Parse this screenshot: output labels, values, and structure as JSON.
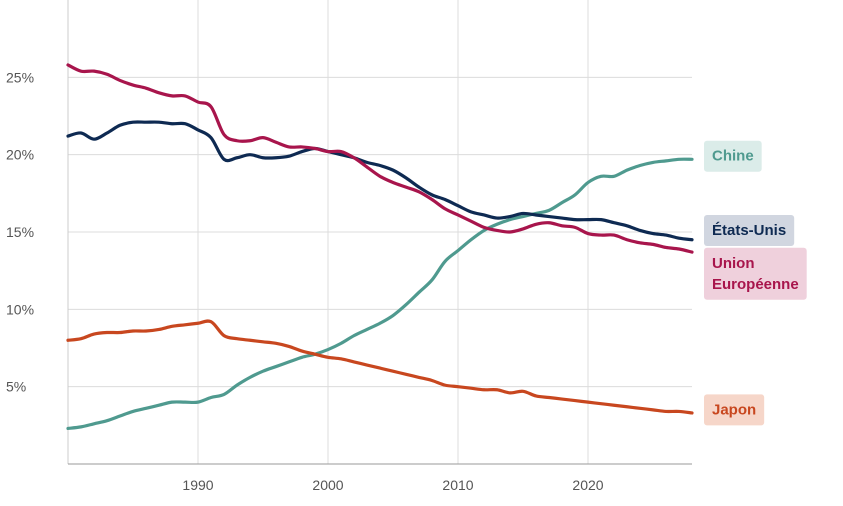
{
  "chart_data": {
    "type": "line",
    "title": "",
    "xlabel": "",
    "ylabel": "",
    "xlim": [
      1980,
      2028
    ],
    "ylim": [
      0,
      30
    ],
    "grid": true,
    "legend_placement": "right, labels at line ends",
    "x_ticks": [
      {
        "value": 1990,
        "label": "1990"
      },
      {
        "value": 2000,
        "label": "2000"
      },
      {
        "value": 2010,
        "label": "2010"
      },
      {
        "value": 2020,
        "label": "2020"
      }
    ],
    "y_ticks": [
      {
        "value": 5,
        "label": "5%"
      },
      {
        "value": 10,
        "label": "10%"
      },
      {
        "value": 15,
        "label": "15%"
      },
      {
        "value": 20,
        "label": "20%"
      },
      {
        "value": 25,
        "label": "25%"
      }
    ],
    "series": [
      {
        "name": "Chine",
        "label_lines": [
          "Chine"
        ],
        "color": "#4f9a8f",
        "label_bg": "#dbece9",
        "label_y": 19.9,
        "points": [
          [
            1980,
            2.3
          ],
          [
            1981,
            2.4
          ],
          [
            1982,
            2.6
          ],
          [
            1983,
            2.8
          ],
          [
            1984,
            3.1
          ],
          [
            1985,
            3.4
          ],
          [
            1986,
            3.6
          ],
          [
            1987,
            3.8
          ],
          [
            1988,
            4.0
          ],
          [
            1989,
            4.0
          ],
          [
            1990,
            4.0
          ],
          [
            1991,
            4.3
          ],
          [
            1992,
            4.5
          ],
          [
            1993,
            5.1
          ],
          [
            1994,
            5.6
          ],
          [
            1995,
            6.0
          ],
          [
            1996,
            6.3
          ],
          [
            1997,
            6.6
          ],
          [
            1998,
            6.9
          ],
          [
            1999,
            7.1
          ],
          [
            2000,
            7.4
          ],
          [
            2001,
            7.8
          ],
          [
            2002,
            8.3
          ],
          [
            2003,
            8.7
          ],
          [
            2004,
            9.1
          ],
          [
            2005,
            9.6
          ],
          [
            2006,
            10.3
          ],
          [
            2007,
            11.1
          ],
          [
            2008,
            11.9
          ],
          [
            2009,
            13.1
          ],
          [
            2010,
            13.8
          ],
          [
            2011,
            14.5
          ],
          [
            2012,
            15.1
          ],
          [
            2013,
            15.5
          ],
          [
            2014,
            15.8
          ],
          [
            2015,
            16.0
          ],
          [
            2016,
            16.2
          ],
          [
            2017,
            16.4
          ],
          [
            2018,
            16.9
          ],
          [
            2019,
            17.4
          ],
          [
            2020,
            18.2
          ],
          [
            2021,
            18.6
          ],
          [
            2022,
            18.6
          ],
          [
            2023,
            19.0
          ],
          [
            2024,
            19.3
          ],
          [
            2025,
            19.5
          ],
          [
            2026,
            19.6
          ],
          [
            2027,
            19.7
          ],
          [
            2028,
            19.7
          ]
        ]
      },
      {
        "name": "États-Unis",
        "label_lines": [
          "États-Unis"
        ],
        "color": "#0e2a52",
        "label_bg": "#d1d6e0",
        "label_y": 15.1,
        "points": [
          [
            1980,
            21.2
          ],
          [
            1981,
            21.4
          ],
          [
            1982,
            21.0
          ],
          [
            1983,
            21.4
          ],
          [
            1984,
            21.9
          ],
          [
            1985,
            22.1
          ],
          [
            1986,
            22.1
          ],
          [
            1987,
            22.1
          ],
          [
            1988,
            22.0
          ],
          [
            1989,
            22.0
          ],
          [
            1990,
            21.6
          ],
          [
            1991,
            21.1
          ],
          [
            1992,
            19.7
          ],
          [
            1993,
            19.8
          ],
          [
            1994,
            20.0
          ],
          [
            1995,
            19.8
          ],
          [
            1996,
            19.8
          ],
          [
            1997,
            19.9
          ],
          [
            1998,
            20.2
          ],
          [
            1999,
            20.4
          ],
          [
            2000,
            20.2
          ],
          [
            2001,
            20.0
          ],
          [
            2002,
            19.8
          ],
          [
            2003,
            19.5
          ],
          [
            2004,
            19.3
          ],
          [
            2005,
            19.0
          ],
          [
            2006,
            18.5
          ],
          [
            2007,
            17.9
          ],
          [
            2008,
            17.4
          ],
          [
            2009,
            17.1
          ],
          [
            2010,
            16.7
          ],
          [
            2011,
            16.3
          ],
          [
            2012,
            16.1
          ],
          [
            2013,
            15.9
          ],
          [
            2014,
            16.0
          ],
          [
            2015,
            16.2
          ],
          [
            2016,
            16.1
          ],
          [
            2017,
            16.0
          ],
          [
            2018,
            15.9
          ],
          [
            2019,
            15.8
          ],
          [
            2020,
            15.8
          ],
          [
            2021,
            15.8
          ],
          [
            2022,
            15.6
          ],
          [
            2023,
            15.4
          ],
          [
            2024,
            15.1
          ],
          [
            2025,
            14.9
          ],
          [
            2026,
            14.8
          ],
          [
            2027,
            14.6
          ],
          [
            2028,
            14.5
          ]
        ]
      },
      {
        "name": "Union Européenne",
        "label_lines": [
          "Union",
          "Européenne"
        ],
        "color": "#a8154c",
        "label_bg": "#efd0dc",
        "label_y": 12.3,
        "points": [
          [
            1980,
            25.8
          ],
          [
            1981,
            25.4
          ],
          [
            1982,
            25.4
          ],
          [
            1983,
            25.2
          ],
          [
            1984,
            24.8
          ],
          [
            1985,
            24.5
          ],
          [
            1986,
            24.3
          ],
          [
            1987,
            24.0
          ],
          [
            1988,
            23.8
          ],
          [
            1989,
            23.8
          ],
          [
            1990,
            23.4
          ],
          [
            1991,
            23.1
          ],
          [
            1992,
            21.3
          ],
          [
            1993,
            20.9
          ],
          [
            1994,
            20.9
          ],
          [
            1995,
            21.1
          ],
          [
            1996,
            20.8
          ],
          [
            1997,
            20.5
          ],
          [
            1998,
            20.5
          ],
          [
            1999,
            20.4
          ],
          [
            2000,
            20.2
          ],
          [
            2001,
            20.2
          ],
          [
            2002,
            19.8
          ],
          [
            2003,
            19.2
          ],
          [
            2004,
            18.6
          ],
          [
            2005,
            18.2
          ],
          [
            2006,
            17.9
          ],
          [
            2007,
            17.6
          ],
          [
            2008,
            17.1
          ],
          [
            2009,
            16.5
          ],
          [
            2010,
            16.1
          ],
          [
            2011,
            15.7
          ],
          [
            2012,
            15.3
          ],
          [
            2013,
            15.1
          ],
          [
            2014,
            15.0
          ],
          [
            2015,
            15.2
          ],
          [
            2016,
            15.5
          ],
          [
            2017,
            15.6
          ],
          [
            2018,
            15.4
          ],
          [
            2019,
            15.3
          ],
          [
            2020,
            14.9
          ],
          [
            2021,
            14.8
          ],
          [
            2022,
            14.8
          ],
          [
            2023,
            14.5
          ],
          [
            2024,
            14.3
          ],
          [
            2025,
            14.2
          ],
          [
            2026,
            14.0
          ],
          [
            2027,
            13.9
          ],
          [
            2028,
            13.7
          ]
        ]
      },
      {
        "name": "Japon",
        "label_lines": [
          "Japon"
        ],
        "color": "#c8471f",
        "label_bg": "#f6d6c9",
        "label_y": 3.5,
        "points": [
          [
            1980,
            8.0
          ],
          [
            1981,
            8.1
          ],
          [
            1982,
            8.4
          ],
          [
            1983,
            8.5
          ],
          [
            1984,
            8.5
          ],
          [
            1985,
            8.6
          ],
          [
            1986,
            8.6
          ],
          [
            1987,
            8.7
          ],
          [
            1988,
            8.9
          ],
          [
            1989,
            9.0
          ],
          [
            1990,
            9.1
          ],
          [
            1991,
            9.2
          ],
          [
            1992,
            8.3
          ],
          [
            1993,
            8.1
          ],
          [
            1994,
            8.0
          ],
          [
            1995,
            7.9
          ],
          [
            1996,
            7.8
          ],
          [
            1997,
            7.6
          ],
          [
            1998,
            7.3
          ],
          [
            1999,
            7.1
          ],
          [
            2000,
            6.9
          ],
          [
            2001,
            6.8
          ],
          [
            2002,
            6.6
          ],
          [
            2003,
            6.4
          ],
          [
            2004,
            6.2
          ],
          [
            2005,
            6.0
          ],
          [
            2006,
            5.8
          ],
          [
            2007,
            5.6
          ],
          [
            2008,
            5.4
          ],
          [
            2009,
            5.1
          ],
          [
            2010,
            5.0
          ],
          [
            2011,
            4.9
          ],
          [
            2012,
            4.8
          ],
          [
            2013,
            4.8
          ],
          [
            2014,
            4.6
          ],
          [
            2015,
            4.7
          ],
          [
            2016,
            4.4
          ],
          [
            2017,
            4.3
          ],
          [
            2018,
            4.2
          ],
          [
            2019,
            4.1
          ],
          [
            2020,
            4.0
          ],
          [
            2021,
            3.9
          ],
          [
            2022,
            3.8
          ],
          [
            2023,
            3.7
          ],
          [
            2024,
            3.6
          ],
          [
            2025,
            3.5
          ],
          [
            2026,
            3.4
          ],
          [
            2027,
            3.4
          ],
          [
            2028,
            3.3
          ]
        ]
      }
    ]
  }
}
